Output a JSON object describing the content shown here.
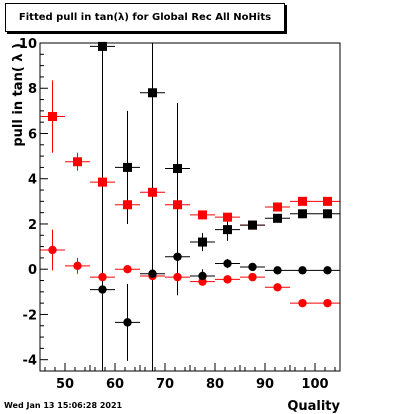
{
  "chart_data": {
    "type": "scatter",
    "title": "Fitted pull in tan(λ) for Global Rec All NoHits",
    "xlabel": "Quality",
    "ylabel": "pull in tan( λ )",
    "xlim": [
      45,
      105
    ],
    "ylim": [
      -4.5,
      10
    ],
    "xticks": [
      50,
      60,
      70,
      80,
      90,
      100
    ],
    "yticks": [
      -4,
      -2,
      0,
      2,
      4,
      6,
      8,
      10
    ],
    "grid": false,
    "legend": "none",
    "x_error": 2.5,
    "series": [
      {
        "color": "#ff0000",
        "marker": "square",
        "points": [
          {
            "x": 47.5,
            "y": 6.75,
            "e": 1.6
          },
          {
            "x": 52.5,
            "y": 4.75,
            "e": 0.4
          },
          {
            "x": 57.5,
            "y": 3.85,
            "e": 0.2
          },
          {
            "x": 62.5,
            "y": 2.85,
            "e": 0.2
          },
          {
            "x": 67.5,
            "y": 3.4,
            "e": 0.2
          },
          {
            "x": 72.5,
            "y": 2.85,
            "e": 0.2
          },
          {
            "x": 77.5,
            "y": 2.4,
            "e": 0.15
          },
          {
            "x": 82.5,
            "y": 2.3,
            "e": 0.15
          },
          {
            "x": 87.5,
            "y": 1.95,
            "e": 0.1
          },
          {
            "x": 92.5,
            "y": 2.75,
            "e": 0.1
          },
          {
            "x": 97.5,
            "y": 3.0,
            "e": 0.1
          },
          {
            "x": 102.5,
            "y": 3.0,
            "e": 0.1
          }
        ]
      },
      {
        "color": "#ff0000",
        "marker": "circle",
        "points": [
          {
            "x": 47.5,
            "y": 0.85,
            "e": 0.9
          },
          {
            "x": 52.5,
            "y": 0.15,
            "e": 0.35
          },
          {
            "x": 57.5,
            "y": -0.35,
            "e": 0.2
          },
          {
            "x": 62.5,
            "y": 0.0,
            "e": 0.15
          },
          {
            "x": 67.5,
            "y": -0.3,
            "e": 0.15
          },
          {
            "x": 72.5,
            "y": -0.35,
            "e": 0.15
          },
          {
            "x": 77.5,
            "y": -0.55,
            "e": 0.1
          },
          {
            "x": 82.5,
            "y": -0.45,
            "e": 0.1
          },
          {
            "x": 87.5,
            "y": -0.35,
            "e": 0.1
          },
          {
            "x": 92.5,
            "y": -0.8,
            "e": 0.1
          },
          {
            "x": 97.5,
            "y": -1.5,
            "e": 0.1
          },
          {
            "x": 102.5,
            "y": -1.5,
            "e": 0.1
          }
        ]
      },
      {
        "color": "#000000",
        "marker": "square",
        "points": [
          {
            "x": 57.5,
            "y": 9.85,
            "e": 1.2
          },
          {
            "x": 62.5,
            "y": 4.5,
            "e": 2.5
          },
          {
            "x": 67.5,
            "y": 7.8,
            "e": 2.8
          },
          {
            "x": 72.5,
            "y": 4.45,
            "e": 2.9
          },
          {
            "x": 77.5,
            "y": 1.2,
            "e": 0.4
          },
          {
            "x": 82.5,
            "y": 1.75,
            "e": 0.5
          },
          {
            "x": 87.5,
            "y": 1.95,
            "e": 0.2
          },
          {
            "x": 92.5,
            "y": 2.25,
            "e": 0.1
          },
          {
            "x": 97.5,
            "y": 2.45,
            "e": 0.1
          },
          {
            "x": 102.5,
            "y": 2.45,
            "e": 0.1
          }
        ]
      },
      {
        "color": "#000000",
        "marker": "circle",
        "points": [
          {
            "x": 57.5,
            "y": -0.9,
            "e": 10
          },
          {
            "x": 62.5,
            "y": -2.35,
            "e": 1.7
          },
          {
            "x": 67.5,
            "y": -0.2,
            "e": 10
          },
          {
            "x": 72.5,
            "y": 0.55,
            "e": 1.7
          },
          {
            "x": 77.5,
            "y": -0.3,
            "e": 0.3
          },
          {
            "x": 82.5,
            "y": 0.25,
            "e": 0.2
          },
          {
            "x": 87.5,
            "y": 0.1,
            "e": 0.1
          },
          {
            "x": 92.5,
            "y": -0.05,
            "e": 0.05
          },
          {
            "x": 97.5,
            "y": -0.05,
            "e": 0.05
          },
          {
            "x": 102.5,
            "y": -0.05,
            "e": 0.05
          }
        ]
      }
    ]
  },
  "footer": {
    "timestamp": "Wed Jan 13 15:06:28 2021"
  }
}
